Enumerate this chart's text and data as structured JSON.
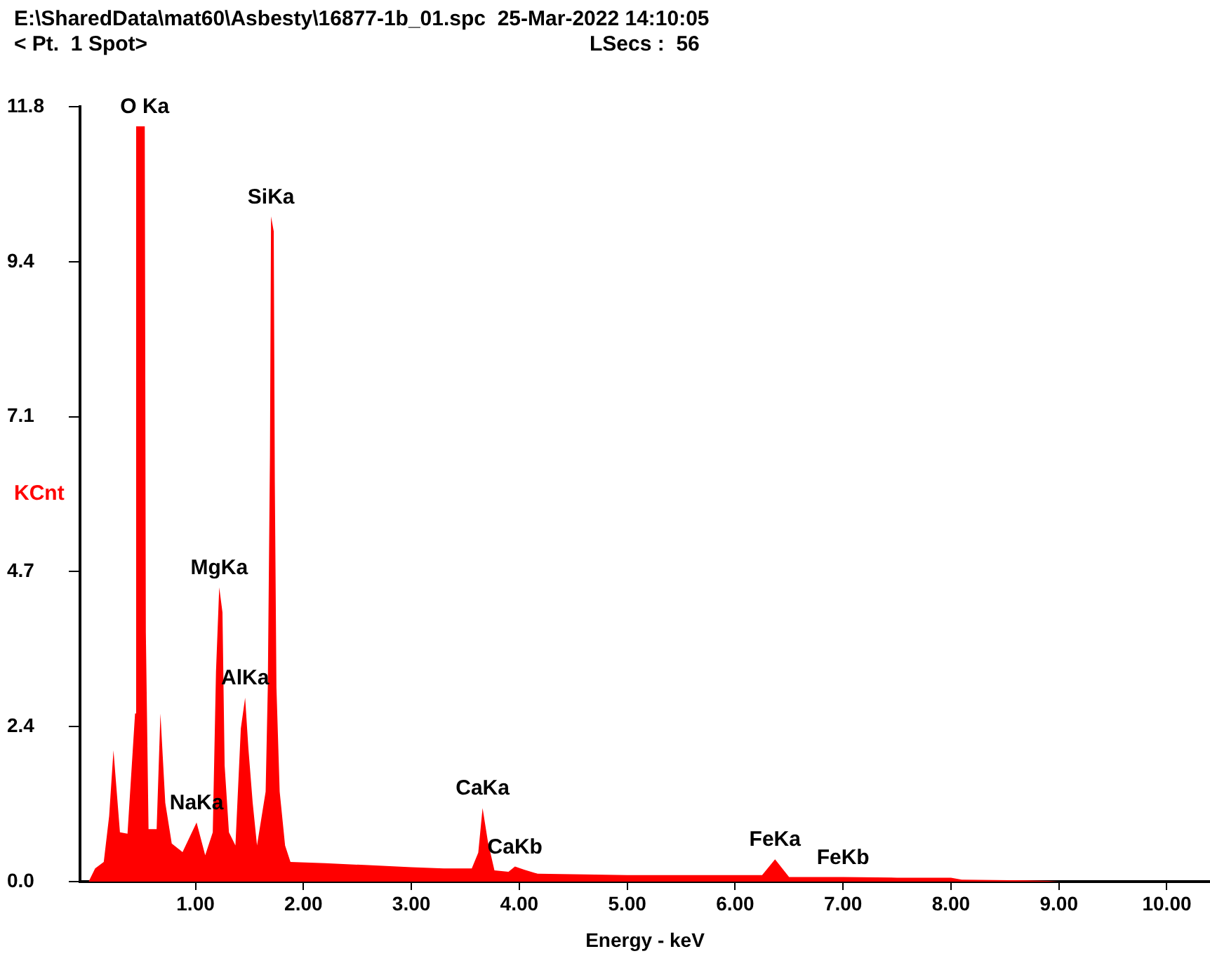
{
  "chart_data": {
    "type": "area",
    "title": "E:\\SharedData\\mat60\\Asbesty\\16877-1b_01.spc  25-Mar-2022 14:10:05",
    "subtitle": "< Pt.  1 Spot>",
    "xlabel": "Energy - keV",
    "ylabel": "KCnt",
    "annotations": [
      "LSecs :  56",
      {
        "text": "O Ka",
        "x": 0.53,
        "y": 11.5
      },
      {
        "text": "SiKa",
        "x": 1.7,
        "y": 10.13
      },
      {
        "text": "MgKa",
        "x": 1.22,
        "y": 4.48
      },
      {
        "text": "AlKa",
        "x": 1.46,
        "y": 2.8
      },
      {
        "text": "NaKa",
        "x": 1.01,
        "y": 0.9
      },
      {
        "text": "CaKa",
        "x": 3.66,
        "y": 1.12
      },
      {
        "text": "CaKb",
        "x": 3.96,
        "y": 0.23
      },
      {
        "text": "FeKa",
        "x": 6.37,
        "y": 0.34
      },
      {
        "text": "FeKb",
        "x": 7.0,
        "y": 0.07
      }
    ],
    "x": [
      0.01,
      0.07,
      0.15,
      0.2,
      0.24,
      0.3,
      0.37,
      0.44,
      0.45,
      0.53,
      0.54,
      0.565,
      0.64,
      0.675,
      0.72,
      0.78,
      0.88,
      1.01,
      1.09,
      1.16,
      1.19,
      1.22,
      1.25,
      1.27,
      1.31,
      1.37,
      1.42,
      1.46,
      1.49,
      1.53,
      1.57,
      1.65,
      1.67,
      1.69,
      1.7,
      1.725,
      1.735,
      1.75,
      1.78,
      1.83,
      1.88,
      2.2,
      2.6,
      3.0,
      3.3,
      3.56,
      3.62,
      3.66,
      3.71,
      3.77,
      3.9,
      3.96,
      4.05,
      4.17,
      4.6,
      5.0,
      5.5,
      5.99,
      6.25,
      6.37,
      6.5,
      7.0,
      7.5,
      8.0,
      8.1,
      8.7,
      8.9,
      9.0,
      10.3
    ],
    "values": [
      0,
      0.2,
      0.3,
      1.0,
      2.0,
      0.75,
      0.73,
      2.56,
      11.5,
      11.5,
      3.8,
      0.8,
      0.8,
      2.56,
      1.2,
      0.58,
      0.45,
      0.9,
      0.4,
      0.75,
      3.2,
      4.48,
      4.1,
      1.77,
      0.75,
      0.55,
      2.33,
      2.8,
      2.03,
      1.2,
      0.55,
      1.37,
      2.96,
      6.5,
      10.13,
      9.9,
      6.1,
      2.96,
      1.37,
      0.55,
      0.3,
      0.28,
      0.25,
      0.22,
      0.2,
      0.2,
      0.44,
      1.12,
      0.6,
      0.17,
      0.15,
      0.23,
      0.18,
      0.12,
      0.11,
      0.1,
      0.1,
      0.1,
      0.1,
      0.34,
      0.07,
      0.07,
      0.06,
      0.06,
      0.03,
      0.02,
      0.01,
      0,
      0
    ],
    "color": "#ff0000",
    "xlim": [
      -0.07,
      10.4
    ],
    "ylim": [
      0,
      11.8
    ],
    "xticks": [
      {
        "value": 1,
        "label": "1.00"
      },
      {
        "value": 2,
        "label": "2.00"
      },
      {
        "value": 3,
        "label": "3.00"
      },
      {
        "value": 4,
        "label": "4.00"
      },
      {
        "value": 5,
        "label": "5.00"
      },
      {
        "value": 6,
        "label": "6.00"
      },
      {
        "value": 7,
        "label": "7.00"
      },
      {
        "value": 8,
        "label": "8.00"
      },
      {
        "value": 9,
        "label": "9.00"
      },
      {
        "value": 10,
        "label": "10.00"
      }
    ],
    "yticks": [
      {
        "value": 0,
        "label": "0.0"
      },
      {
        "value": 2.36,
        "label": "2.4"
      },
      {
        "value": 4.72,
        "label": "4.7"
      },
      {
        "value": 7.08,
        "label": "7.1"
      },
      {
        "value": 9.44,
        "label": "9.4"
      },
      {
        "value": 11.8,
        "label": "11.8"
      }
    ],
    "grid": false,
    "legend": false
  }
}
